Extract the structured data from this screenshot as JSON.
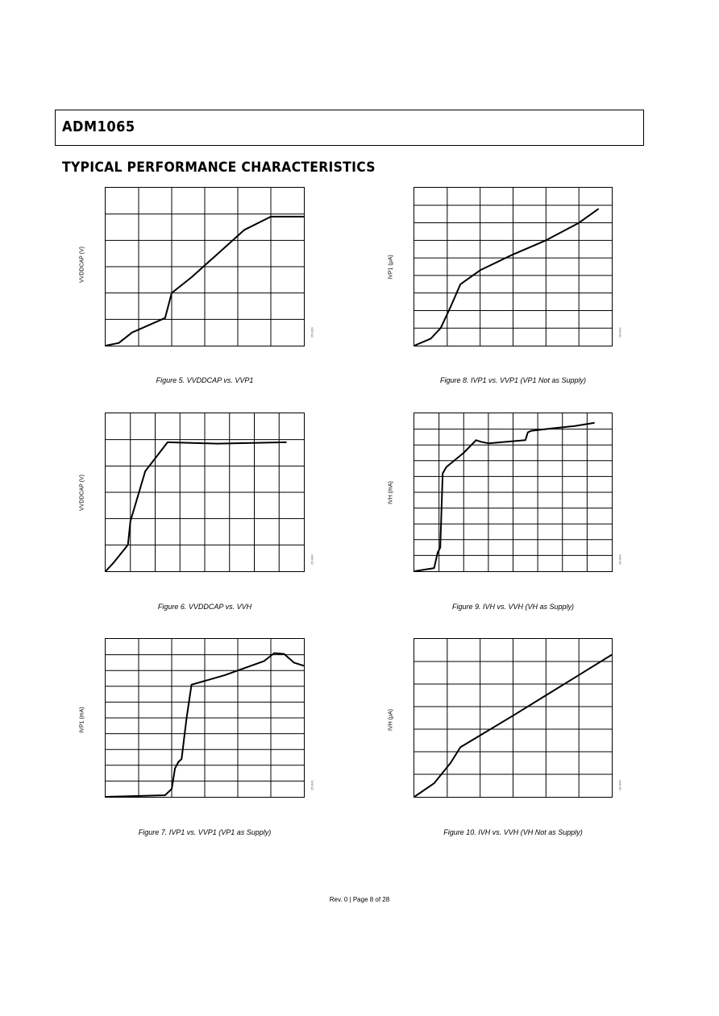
{
  "header": {
    "title": "ADM1065"
  },
  "section": {
    "title": "TYPICAL PERFORMANCE CHARACTERISTICS"
  },
  "footer": {
    "text": "Rev. 0 | Page 8 of 28"
  },
  "chart_data": [
    {
      "type": "line",
      "id": "fig5",
      "caption": "Figure 5. VVDDCAP vs. VVP1",
      "ylabel": "VVDDCAP (V)",
      "figure_id": "05-039",
      "grid_cols": 6,
      "grid_rows": 6,
      "xlim": [
        0,
        6
      ],
      "ylim": [
        0,
        6
      ],
      "series": [
        {
          "x": [
            0,
            0.4,
            0.8,
            1.8,
            2.0,
            2.2,
            2.6,
            3.4,
            4.2,
            5.0,
            6.0
          ],
          "y": [
            0,
            0.1,
            0.5,
            1.05,
            2.0,
            2.2,
            2.6,
            3.5,
            4.4,
            4.9,
            4.9
          ]
        }
      ]
    },
    {
      "type": "line",
      "id": "fig6",
      "caption": "Figure 6. VVDDCAP vs. VVH",
      "ylabel": "VVDDCAP (V)",
      "figure_id": "05-040",
      "grid_cols": 8,
      "grid_rows": 6,
      "xlim": [
        0,
        8
      ],
      "ylim": [
        0,
        6
      ],
      "series": [
        {
          "x": [
            0,
            0.3,
            0.9,
            1.0,
            1.6,
            2.5,
            4.5,
            7.3
          ],
          "y": [
            0,
            0.3,
            1.0,
            1.9,
            3.8,
            4.9,
            4.85,
            4.9
          ]
        }
      ]
    },
    {
      "type": "line",
      "id": "fig7",
      "caption": "Figure 7. IVP1 vs. VVP1 (VP1 as Supply)",
      "ylabel": "IVP1 (mA)",
      "figure_id": "05-041",
      "grid_cols": 6,
      "grid_rows": 10,
      "xlim": [
        0,
        6
      ],
      "ylim": [
        0,
        10
      ],
      "series": [
        {
          "x": [
            0,
            1.8,
            2.0,
            2.1,
            2.2,
            2.3,
            2.45,
            2.6,
            3.6,
            4.8,
            5.1,
            5.4,
            5.7,
            6.0
          ],
          "y": [
            0,
            0.1,
            0.5,
            1.8,
            2.2,
            2.4,
            5.0,
            7.1,
            7.7,
            8.6,
            9.1,
            9.05,
            8.5,
            8.3
          ]
        }
      ]
    },
    {
      "type": "line",
      "id": "fig8",
      "caption": "Figure 8. IVP1 vs. VVP1 (VP1 Not as Supply)",
      "ylabel": "IVP1 (μA)",
      "figure_id": "05-042",
      "grid_cols": 6,
      "grid_rows": 9,
      "xlim": [
        0,
        6
      ],
      "ylim": [
        0,
        9
      ],
      "series": [
        {
          "x": [
            0,
            0.5,
            0.8,
            1.1,
            1.4,
            2.0,
            3.0,
            4.0,
            5.0,
            5.6
          ],
          "y": [
            0,
            0.4,
            1.0,
            2.2,
            3.5,
            4.3,
            5.2,
            6.0,
            7.0,
            7.8
          ]
        }
      ]
    },
    {
      "type": "line",
      "id": "fig9",
      "caption": "Figure 9. IVH vs. VVH (VH as Supply)",
      "ylabel": "IVH (mA)",
      "figure_id": "05-043",
      "grid_cols": 8,
      "grid_rows": 10,
      "xlim": [
        0,
        8
      ],
      "ylim": [
        0,
        10
      ],
      "series": [
        {
          "x": [
            0,
            0.8,
            0.95,
            1.05,
            1.15,
            1.3,
            2.0,
            2.5,
            2.7,
            3.0,
            4.5,
            4.6,
            4.75,
            5.6,
            6.5,
            7.3
          ],
          "y": [
            0,
            0.2,
            1.2,
            1.5,
            6.2,
            6.6,
            7.5,
            8.3,
            8.2,
            8.1,
            8.3,
            8.8,
            8.9,
            9.05,
            9.2,
            9.4
          ]
        }
      ]
    },
    {
      "type": "line",
      "id": "fig10",
      "caption": "Figure 10. IVH vs. VVH (VH Not as Supply)",
      "ylabel": "IVH (μA)",
      "figure_id": "05-044",
      "grid_cols": 6,
      "grid_rows": 7,
      "xlim": [
        0,
        6
      ],
      "ylim": [
        0,
        7
      ],
      "series": [
        {
          "x": [
            0,
            0.6,
            1.1,
            1.4,
            1.8,
            3.0,
            4.0,
            5.0,
            6.0
          ],
          "y": [
            0,
            0.6,
            1.5,
            2.2,
            2.55,
            3.6,
            4.5,
            5.4,
            6.3
          ]
        }
      ]
    }
  ]
}
